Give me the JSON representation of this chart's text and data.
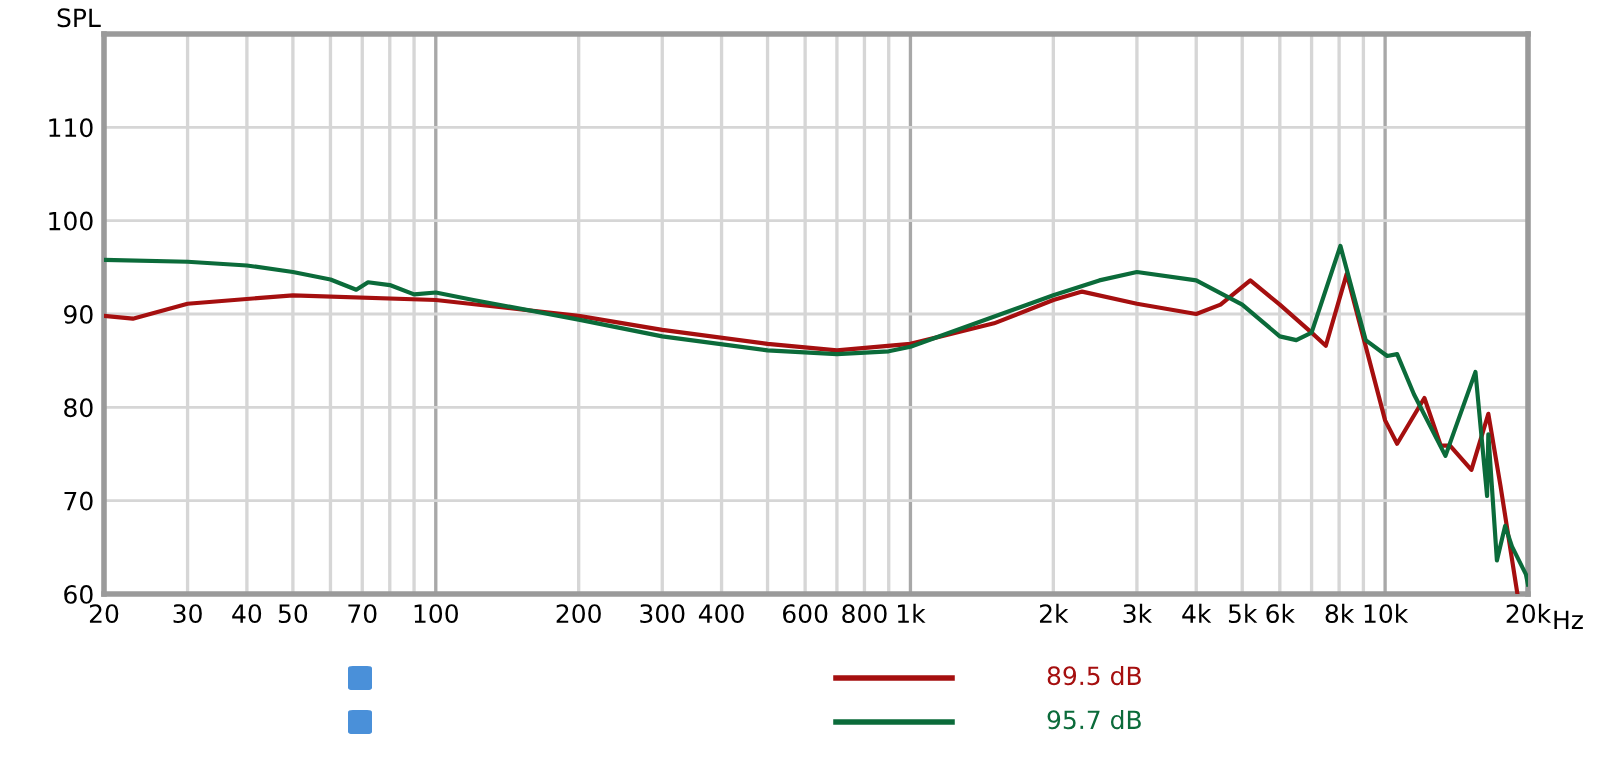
{
  "chart_data": {
    "type": "line",
    "ylabel": "SPL",
    "log": "x",
    "xlim": [
      20,
      20000
    ],
    "ylim": [
      60,
      120
    ],
    "xticks": [
      20,
      30,
      40,
      50,
      {
        "value": 60,
        "label": null
      },
      70,
      {
        "value": 80,
        "label": null
      },
      {
        "value": 90,
        "label": null
      },
      100,
      200,
      300,
      400,
      {
        "value": 500,
        "label": null
      },
      600,
      {
        "value": 700,
        "label": null
      },
      800,
      {
        "value": 900,
        "label": null
      },
      {
        "value": 1000,
        "label": "1k"
      },
      {
        "value": 2000,
        "label": "2k"
      },
      {
        "value": 3000,
        "label": "3k"
      },
      {
        "value": 4000,
        "label": "4k"
      },
      {
        "value": 5000,
        "label": "5k"
      },
      {
        "value": 6000,
        "label": "6k"
      },
      {
        "value": 7000,
        "label": null
      },
      {
        "value": 8000,
        "label": "8k"
      },
      {
        "value": 9000,
        "label": null
      },
      {
        "value": 10000,
        "label": "10k"
      },
      {
        "value": 20000,
        "label": "20k"
      }
    ],
    "xlabel": "Hz",
    "yticks": [
      60,
      70,
      80,
      90,
      100,
      110,
      {
        "value": 120,
        "label": null
      }
    ],
    "grid": true,
    "marker": "none",
    "line_style": "solid",
    "series": [
      {
        "color": "#a50f0f",
        "x": [
          20,
          23,
          30,
          50,
          100,
          200,
          300,
          500,
          700,
          1000,
          1500,
          2000,
          2300,
          3000,
          4000,
          4500,
          5200,
          6000,
          7000,
          7500,
          8300,
          10000,
          10600,
          12100,
          13100,
          13700,
          15200,
          16500,
          17500,
          19000
        ],
        "values": [
          89.8,
          89.5,
          91.1,
          92.0,
          91.5,
          89.8,
          88.3,
          86.8,
          86.1,
          86.8,
          89.0,
          91.5,
          92.4,
          91.1,
          90.0,
          91.0,
          93.6,
          91.0,
          88.0,
          86.6,
          94.3,
          78.6,
          76.1,
          81.0,
          75.9,
          75.9,
          73.3,
          79.3,
          71.6,
          60
        ]
      },
      {
        "color": "#0b6b3a",
        "x": [
          20,
          30,
          40,
          50,
          60,
          68,
          72,
          80,
          90,
          100,
          120,
          200,
          300,
          500,
          700,
          900,
          1000,
          2000,
          2500,
          3000,
          4000,
          5000,
          6000,
          6500,
          7000,
          8050,
          9100,
          10100,
          10600,
          11500,
          13400,
          15500,
          16400,
          16500,
          17200,
          17900,
          18500,
          19800,
          20000
        ],
        "values": [
          95.8,
          95.6,
          95.2,
          94.5,
          93.7,
          92.6,
          93.4,
          93.1,
          92.1,
          92.3,
          91.5,
          89.4,
          87.6,
          86.1,
          85.7,
          86.0,
          86.5,
          92.0,
          93.6,
          94.5,
          93.6,
          91.0,
          87.6,
          87.2,
          88.0,
          97.3,
          87.2,
          85.5,
          85.7,
          81.4,
          74.8,
          83.8,
          70.5,
          77.1,
          63.6,
          67.3,
          65.1,
          62.1,
          61
        ]
      }
    ],
    "annotations": [
      "89.5 dB",
      "95.7 dB"
    ]
  }
}
